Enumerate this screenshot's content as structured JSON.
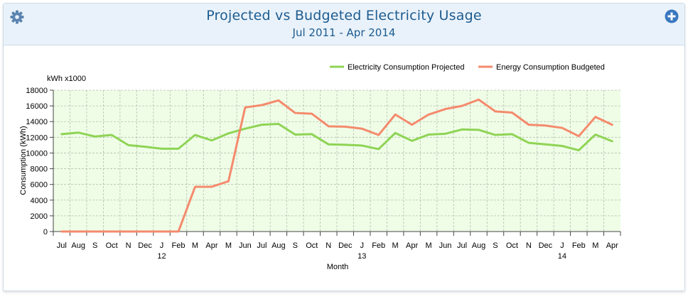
{
  "header": {
    "title": "Projected vs Budgeted Electricity Usage",
    "subtitle": "Jul 2011 - Apr 2014",
    "settings_icon": "gear-icon",
    "add_icon": "plus-circle-icon"
  },
  "colors": {
    "projected": "#8fd455",
    "budgeted": "#f58a6c",
    "plot_bg": "#effde7",
    "grid": "#9aa79a",
    "header_bg": "#e9f2fa",
    "title": "#1d5b8f"
  },
  "chart_data": {
    "type": "line",
    "title": "Projected vs Budgeted Electricity Usage",
    "subtitle": "Jul 2011 - Apr 2014",
    "xlabel": "Month",
    "ylabel": "Consumption (kWh)",
    "unit_label": "kWh x1000",
    "ylim": [
      0,
      18000
    ],
    "yticks": [
      0,
      2000,
      4000,
      6000,
      8000,
      10000,
      12000,
      14000,
      16000,
      18000
    ],
    "grid": true,
    "legend_position": "top-right",
    "categories": [
      "Jul",
      "Aug",
      "S",
      "Oct",
      "N",
      "Dec",
      "J",
      "Feb",
      "M",
      "Apr",
      "M",
      "Jun",
      "Jul",
      "Aug",
      "S",
      "Oct",
      "N",
      "Dec",
      "J",
      "Feb",
      "M",
      "Apr",
      "M",
      "Jun",
      "Jul",
      "Aug",
      "S",
      "Oct",
      "N",
      "Dec",
      "J",
      "Feb",
      "M",
      "Apr"
    ],
    "year_labels": [
      {
        "index": 6,
        "label": "12"
      },
      {
        "index": 18,
        "label": "13"
      },
      {
        "index": 30,
        "label": "14"
      }
    ],
    "series": [
      {
        "name": "Electricity Consumption Projected",
        "color": "#8fd455",
        "values": [
          12400,
          12600,
          12100,
          12300,
          11000,
          10800,
          10550,
          10550,
          12300,
          11600,
          12500,
          13100,
          13600,
          13700,
          12350,
          12400,
          11100,
          11050,
          10950,
          10500,
          12550,
          11550,
          12350,
          12450,
          13000,
          12950,
          12300,
          12400,
          11300,
          11100,
          10900,
          10350,
          12350,
          11500
        ]
      },
      {
        "name": "Energy Consumption Budgeted",
        "color": "#f58a6c",
        "values": [
          0,
          0,
          0,
          0,
          0,
          0,
          0,
          0,
          5700,
          5700,
          6400,
          15800,
          16100,
          16700,
          15100,
          15000,
          13400,
          13350,
          13100,
          12300,
          14900,
          13600,
          14900,
          15600,
          16000,
          16800,
          15300,
          15150,
          13600,
          13500,
          13200,
          12150,
          14600,
          13600
        ]
      }
    ]
  }
}
